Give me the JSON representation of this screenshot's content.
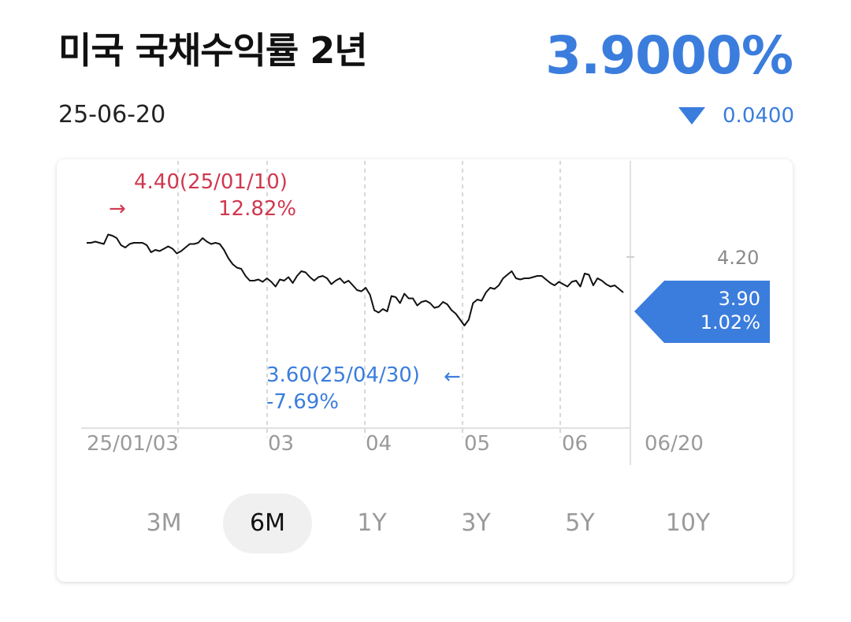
{
  "header": {
    "title": "미국 국채수익률 2년",
    "date": "25-06-20",
    "price": "3.9000%",
    "change": "0.0400",
    "change_direction": "down"
  },
  "colors": {
    "accent_blue": "#3b7ddd",
    "high_red": "#d0384f"
  },
  "annotations": {
    "high": {
      "value_date": "4.40(25/01/10)",
      "pct": "12.82%",
      "arrow": "→"
    },
    "low": {
      "value_date": "3.60(25/04/30)",
      "pct": "-7.69%",
      "arrow": "←"
    },
    "current": {
      "value": "3.90",
      "pct": "1.02%"
    }
  },
  "chart_data": {
    "type": "line",
    "x_tick_labels": [
      "25/01/03",
      "03",
      "04",
      "05",
      "06",
      "06/20"
    ],
    "y_tick_labels": [
      "4.20"
    ],
    "grid": true,
    "series": [
      {
        "values": [
          4.32,
          4.32,
          4.33,
          4.32,
          4.31,
          4.39,
          4.38,
          4.36,
          4.3,
          4.28,
          4.31,
          4.32,
          4.32,
          4.32,
          4.3,
          4.24,
          4.26,
          4.25,
          4.27,
          4.29,
          4.27,
          4.23,
          4.25,
          4.28,
          4.31,
          4.31,
          4.32,
          4.36,
          4.33,
          4.31,
          4.32,
          4.31,
          4.26,
          4.19,
          4.14,
          4.11,
          4.1,
          4.04,
          4.0,
          4.0,
          4.01,
          3.99,
          4.02,
          3.99,
          3.95,
          4.01,
          4.0,
          4.03,
          3.98,
          4.04,
          4.08,
          4.07,
          4.03,
          4.0,
          4.03,
          4.04,
          4.02,
          3.97,
          4.0,
          4.02,
          3.98,
          4.0,
          3.96,
          3.92,
          3.91,
          3.94,
          3.88,
          3.75,
          3.73,
          3.76,
          3.74,
          3.87,
          3.86,
          3.81,
          3.89,
          3.85,
          3.85,
          3.79,
          3.82,
          3.83,
          3.81,
          3.77,
          3.78,
          3.82,
          3.8,
          3.75,
          3.72,
          3.67,
          3.62,
          3.67,
          3.81,
          3.84,
          3.83,
          3.9,
          3.94,
          3.93,
          3.96,
          4.02,
          4.05,
          4.08,
          4.02,
          4.01,
          4.02,
          4.02,
          4.03,
          4.04,
          4.04,
          4.01,
          3.98,
          3.96,
          3.99,
          3.97,
          3.95,
          3.99,
          4.0,
          3.95,
          4.06,
          4.05,
          3.96,
          4.02,
          4.0,
          3.97,
          3.95,
          3.96,
          3.93,
          3.9
        ]
      }
    ]
  },
  "range_tabs": {
    "selected": "6M",
    "items": [
      "3M",
      "6M",
      "1Y",
      "3Y",
      "5Y",
      "10Y"
    ]
  }
}
